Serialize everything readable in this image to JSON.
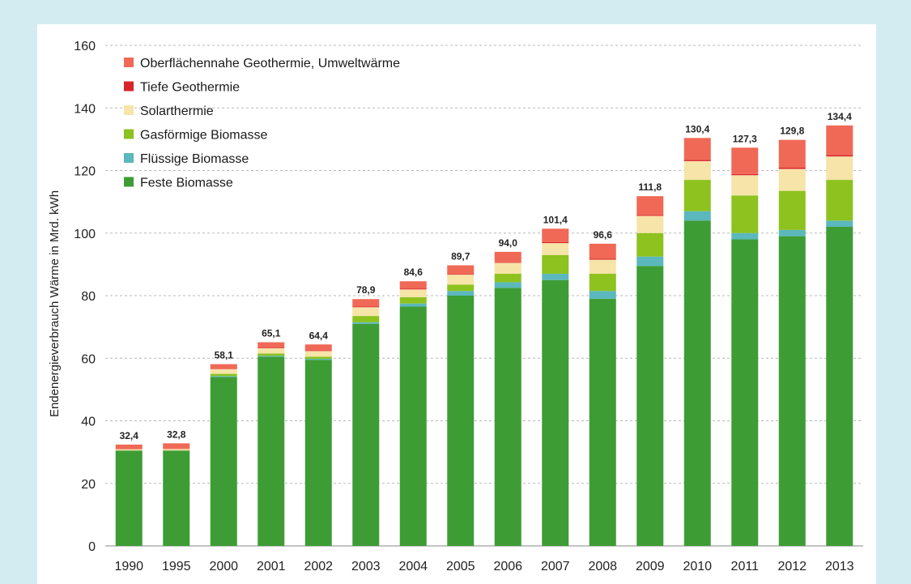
{
  "chart_data": {
    "type": "bar",
    "stacked": true,
    "ylabel": "Endenergieverbrauch Wärme in Mrd. kWh",
    "xlabel": "",
    "ylim": [
      0,
      160
    ],
    "yticks": [
      0,
      20,
      40,
      60,
      80,
      100,
      120,
      140,
      160
    ],
    "grid": true,
    "legend_position": "top-left",
    "categories": [
      "1990",
      "1995",
      "2000",
      "2001",
      "2002",
      "2003",
      "2004",
      "2005",
      "2006",
      "2007",
      "2008",
      "2009",
      "2010",
      "2011",
      "2012",
      "2013"
    ],
    "totals_labels": [
      "32,4",
      "32,8",
      "58,1",
      "65,1",
      "64,4",
      "78,9",
      "84,6",
      "89,7",
      "94,0",
      "101,4",
      "96,6",
      "111,8",
      "130,4",
      "127,3",
      "129,8",
      "134,4"
    ],
    "legend_order": [
      5,
      4,
      3,
      2,
      1,
      0
    ],
    "series": [
      {
        "name": "Feste Biomasse",
        "color": "#3e9c35",
        "values": [
          30.5,
          30.5,
          54.0,
          60.5,
          59.5,
          71.0,
          76.5,
          80.0,
          82.5,
          85.0,
          79.0,
          89.5,
          104.0,
          98.0,
          99.0,
          102.0
        ]
      },
      {
        "name": "Flüssige Biomasse",
        "color": "#5bb8bd",
        "values": [
          0.0,
          0.0,
          0.3,
          0.3,
          0.3,
          0.5,
          1.0,
          1.5,
          1.8,
          2.0,
          2.5,
          3.0,
          3.0,
          2.0,
          2.0,
          2.0
        ]
      },
      {
        "name": "Gasförmige Biomasse",
        "color": "#8dc21f",
        "values": [
          0.0,
          0.0,
          0.7,
          0.7,
          0.7,
          2.0,
          2.0,
          2.0,
          2.7,
          6.0,
          5.5,
          7.5,
          10.0,
          12.0,
          12.5,
          13.0
        ]
      },
      {
        "name": "Solarthermie",
        "color": "#f6e4a8",
        "values": [
          0.4,
          0.5,
          1.5,
          1.7,
          1.8,
          2.8,
          2.5,
          3.2,
          3.5,
          3.8,
          4.5,
          5.5,
          6.0,
          6.5,
          7.0,
          7.5
        ]
      },
      {
        "name": "Tiefe Geothermie",
        "color": "#d9242b",
        "values": [
          0.1,
          0.1,
          0.1,
          0.2,
          0.2,
          0.2,
          0.2,
          0.2,
          0.2,
          0.3,
          0.3,
          0.3,
          0.4,
          0.4,
          0.4,
          0.4
        ]
      },
      {
        "name": "Oberflächennahe Geothermie, Umweltwärme",
        "color": "#f06956",
        "values": [
          1.4,
          1.7,
          1.5,
          1.7,
          1.9,
          2.4,
          2.4,
          2.8,
          3.3,
          4.3,
          4.8,
          6.0,
          7.0,
          8.4,
          8.9,
          9.5
        ]
      }
    ]
  }
}
